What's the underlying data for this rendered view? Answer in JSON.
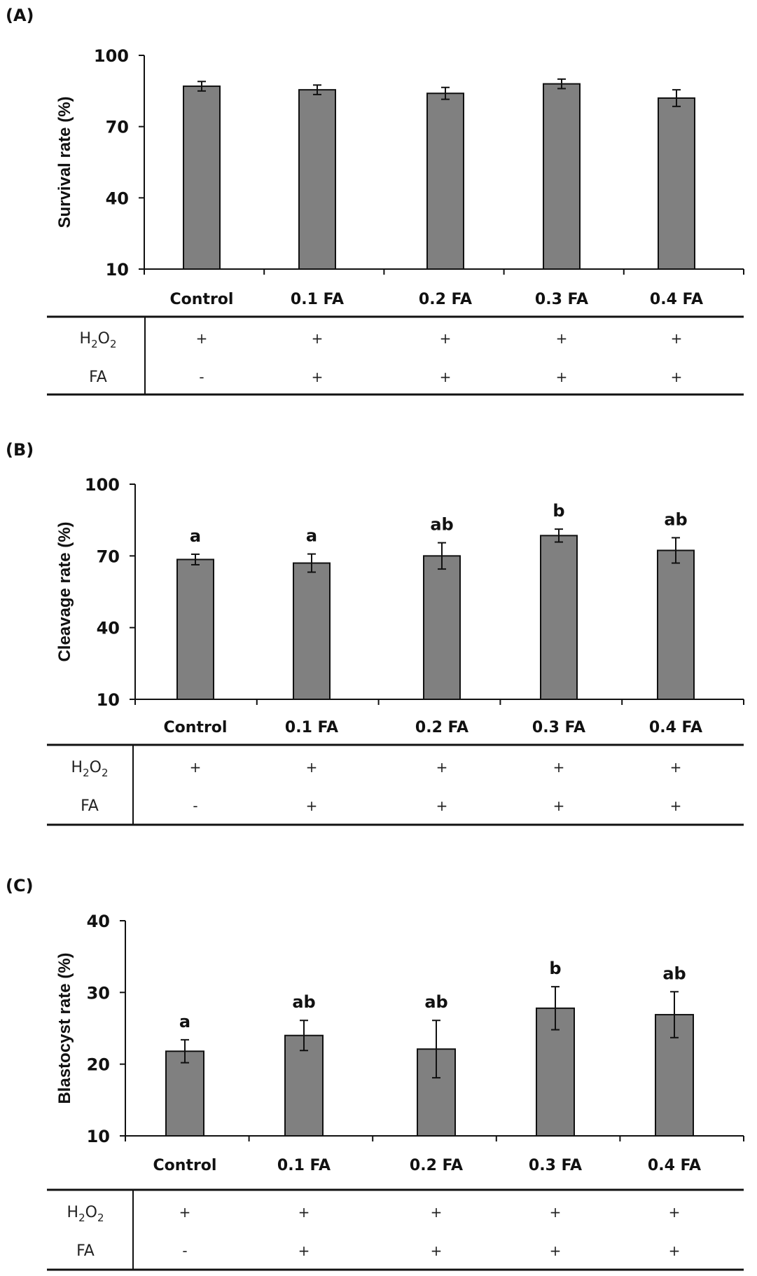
{
  "figure": {
    "colors": {
      "bar_fill": "#808080",
      "bar_stroke": "#111111",
      "axis": "#111111"
    },
    "table_rows": [
      "H2O2",
      "FA"
    ]
  },
  "chart_data": [
    {
      "type": "bar",
      "panel": "(A)",
      "title": "",
      "ylabel": "Survival rate (%)",
      "xlabel": "",
      "ylim": [
        10,
        100
      ],
      "yticks": [
        10,
        40,
        70,
        100
      ],
      "grid": false,
      "categories": [
        "Control",
        "0.1 FA",
        "0.2 FA",
        "0.3 FA",
        "0.4 FA"
      ],
      "values": [
        87,
        85.5,
        84,
        88,
        82
      ],
      "errors": [
        2,
        2,
        2.5,
        2,
        3.5
      ],
      "significance_labels": [
        "",
        "",
        "",
        "",
        ""
      ],
      "table": {
        "rows": [
          {
            "label": "H2O2",
            "label_main": "H",
            "sub1": "2",
            "mid": "O",
            "sub2": "2",
            "cells": [
              "+",
              "+",
              "+",
              "+",
              "+"
            ]
          },
          {
            "label": "FA",
            "label_main": "FA",
            "cells": [
              "-",
              "+",
              "+",
              "+",
              "+"
            ]
          }
        ]
      }
    },
    {
      "type": "bar",
      "panel": "(B)",
      "title": "",
      "ylabel": "Cleavage rate (%)",
      "xlabel": "",
      "ylim": [
        10,
        100
      ],
      "yticks": [
        10,
        40,
        70,
        100
      ],
      "grid": false,
      "categories": [
        "Control",
        "0.1 FA",
        "0.2 FA",
        "0.3 FA",
        "0.4 FA"
      ],
      "values": [
        68.5,
        67,
        70,
        78.5,
        72.3
      ],
      "errors": [
        2.2,
        3.8,
        5.5,
        2.7,
        5.3
      ],
      "significance_labels": [
        "a",
        "a",
        "ab",
        "b",
        "ab"
      ],
      "table": {
        "rows": [
          {
            "label": "H2O2",
            "label_main": "H",
            "sub1": "2",
            "mid": "O",
            "sub2": "2",
            "cells": [
              "+",
              "+",
              "+",
              "+",
              "+"
            ]
          },
          {
            "label": "FA",
            "label_main": "FA",
            "cells": [
              "-",
              "+",
              "+",
              "+",
              "+"
            ]
          }
        ]
      }
    },
    {
      "type": "bar",
      "panel": "(C)",
      "title": "",
      "ylabel": "Blastocyst rate (%)",
      "xlabel": "",
      "ylim": [
        10,
        40
      ],
      "yticks": [
        10,
        20,
        30,
        40
      ],
      "grid": false,
      "categories": [
        "Control",
        "0.1 FA",
        "0.2 FA",
        "0.3 FA",
        "0.4 FA"
      ],
      "values": [
        21.8,
        24,
        22.1,
        27.8,
        26.9
      ],
      "errors": [
        1.6,
        2.1,
        4,
        3,
        3.2
      ],
      "significance_labels": [
        "a",
        "ab",
        "ab",
        "b",
        "ab"
      ],
      "table": {
        "rows": [
          {
            "label": "H2O2",
            "label_main": "H",
            "sub1": "2",
            "mid": "O",
            "sub2": "2",
            "cells": [
              "+",
              "+",
              "+",
              "+",
              "+"
            ]
          },
          {
            "label": "FA",
            "label_main": "FA",
            "cells": [
              "-",
              "+",
              "+",
              "+",
              "+"
            ]
          }
        ]
      }
    }
  ]
}
